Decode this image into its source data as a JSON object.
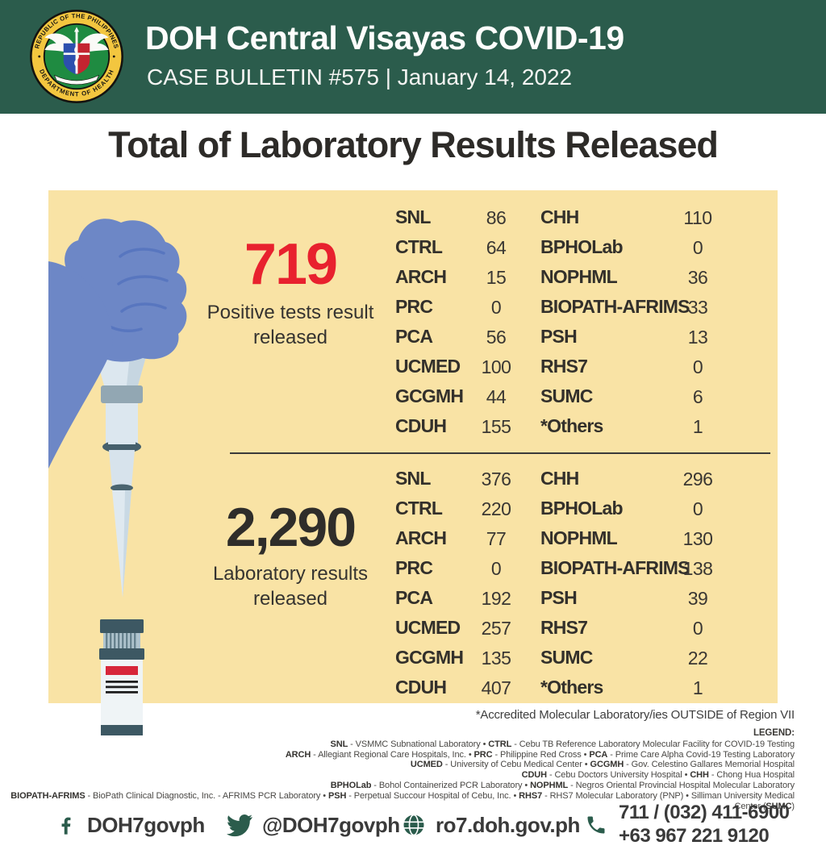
{
  "header": {
    "title": "DOH Central Visayas COVID-19",
    "subtitle": "CASE BULLETIN #575 | January 14, 2022",
    "seal": {
      "ring_top": "REPUBLIC OF THE PHILIPPINES",
      "ring_bottom": "DEPARTMENT OF HEALTH"
    }
  },
  "page_title": "Total of Laboratory Results Released",
  "colors": {
    "header_green": "#2B5C4C",
    "panel_cream": "#F9E3A5",
    "accent_red": "#E8212E",
    "text_dark": "#2D2B28",
    "icon_green": "#2B5C4C"
  },
  "sections": [
    {
      "stat_value": "719",
      "stat_caption": "Positive tests result released",
      "stat_color": "#E8212E",
      "left_rows": [
        {
          "label": "SNL",
          "value": "86"
        },
        {
          "label": "CTRL",
          "value": "64"
        },
        {
          "label": "ARCH",
          "value": "15"
        },
        {
          "label": "PRC",
          "value": "0"
        },
        {
          "label": "PCA",
          "value": "56"
        },
        {
          "label": "UCMED",
          "value": "100"
        },
        {
          "label": "GCGMH",
          "value": "44"
        },
        {
          "label": "CDUH",
          "value": "155"
        }
      ],
      "right_rows": [
        {
          "label": "CHH",
          "value": "110"
        },
        {
          "label": "BPHOLab",
          "value": "0"
        },
        {
          "label": "NOPHML",
          "value": "36"
        },
        {
          "label": "BIOPATH-AFRIMS",
          "value": "33"
        },
        {
          "label": "PSH",
          "value": "13"
        },
        {
          "label": "RHS7",
          "value": "0"
        },
        {
          "label": "SUMC",
          "value": "6"
        },
        {
          "label": "*Others",
          "value": "1"
        }
      ]
    },
    {
      "stat_value": "2,290",
      "stat_caption": "Laboratory results released",
      "stat_color": "#2F2D2A",
      "left_rows": [
        {
          "label": "SNL",
          "value": "376"
        },
        {
          "label": "CTRL",
          "value": "220"
        },
        {
          "label": "ARCH",
          "value": "77"
        },
        {
          "label": "PRC",
          "value": "0"
        },
        {
          "label": "PCA",
          "value": "192"
        },
        {
          "label": "UCMED",
          "value": "257"
        },
        {
          "label": "GCGMH",
          "value": "135"
        },
        {
          "label": "CDUH",
          "value": "407"
        }
      ],
      "right_rows": [
        {
          "label": "CHH",
          "value": "296"
        },
        {
          "label": "BPHOLab",
          "value": "0"
        },
        {
          "label": "NOPHML",
          "value": "130"
        },
        {
          "label": "BIOPATH-AFRIMS",
          "value": "138"
        },
        {
          "label": "PSH",
          "value": "39"
        },
        {
          "label": "RHS7",
          "value": "0"
        },
        {
          "label": "SUMC",
          "value": "22"
        },
        {
          "label": "*Others",
          "value": "1"
        }
      ]
    }
  ],
  "footnote": "*Accredited Molecular Laboratory/ies OUTSIDE of Region VII",
  "legend": {
    "heading": "LEGEND:",
    "lines": [
      [
        {
          "bold": true,
          "text": "SNL"
        },
        {
          "bold": false,
          "text": " - VSMMC Subnational Laboratory • "
        },
        {
          "bold": true,
          "text": "CTRL"
        },
        {
          "bold": false,
          "text": " - Cebu TB Reference Laboratory Molecular Facility for COVID-19 Testing"
        }
      ],
      [
        {
          "bold": true,
          "text": "ARCH"
        },
        {
          "bold": false,
          "text": " - Allegiant Regional Care Hospitals, Inc. • "
        },
        {
          "bold": true,
          "text": "PRC"
        },
        {
          "bold": false,
          "text": " - Philippine Red Cross • "
        },
        {
          "bold": true,
          "text": "PCA"
        },
        {
          "bold": false,
          "text": " - Prime Care Alpha Covid-19 Testing Laboratory"
        }
      ],
      [
        {
          "bold": true,
          "text": "UCMED"
        },
        {
          "bold": false,
          "text": " - University of Cebu Medical Center • "
        },
        {
          "bold": true,
          "text": "GCGMH"
        },
        {
          "bold": false,
          "text": " - Gov. Celestino Gallares Memorial Hospital"
        }
      ],
      [
        {
          "bold": true,
          "text": "CDUH"
        },
        {
          "bold": false,
          "text": " - Cebu Doctors University Hospital • "
        },
        {
          "bold": true,
          "text": "CHH"
        },
        {
          "bold": false,
          "text": " - Chong Hua Hospital"
        }
      ],
      [
        {
          "bold": true,
          "text": "BPHOLab"
        },
        {
          "bold": false,
          "text": " - Bohol Containerized PCR Laboratory • "
        },
        {
          "bold": true,
          "text": "NOPHML"
        },
        {
          "bold": false,
          "text": " - Negros Oriental Provincial Hospital Molecular Laboratory"
        }
      ],
      [
        {
          "bold": true,
          "text": "BIOPATH-AFRIMS"
        },
        {
          "bold": false,
          "text": " - BioPath Clinical Diagnostic, Inc. - AFRIMS PCR Laboratory • "
        },
        {
          "bold": true,
          "text": "PSH"
        },
        {
          "bold": false,
          "text": " - Perpetual Succour Hospital of Cebu, Inc. • "
        },
        {
          "bold": true,
          "text": "RHS7"
        },
        {
          "bold": false,
          "text": " - RHS7 Molecular Laboratory (PNP) • Silliman University Medical Center ("
        },
        {
          "bold": true,
          "text": "SUMC"
        },
        {
          "bold": false,
          "text": ")"
        }
      ]
    ]
  },
  "footer": {
    "facebook": "DOH7govph",
    "twitter": "@DOH7govph",
    "website": "ro7.doh.gov.ph",
    "phone_line1": "711 / (032) 411-6900",
    "phone_line2": "+63 967 221 9120"
  }
}
